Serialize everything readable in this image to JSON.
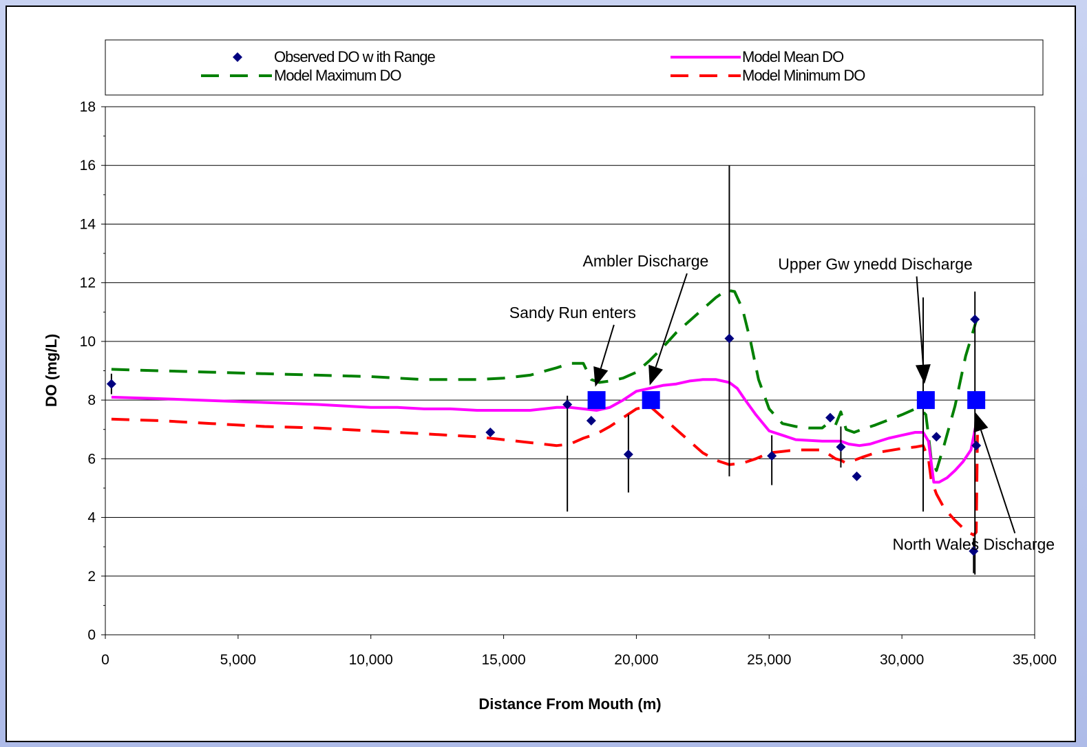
{
  "chart_data": {
    "type": "line",
    "xlabel": "Distance From Mouth (m)",
    "ylabel": "DO (mg/L)",
    "xlim": [
      0,
      35000
    ],
    "ylim": [
      0,
      18
    ],
    "x_ticks": [
      0,
      5000,
      10000,
      15000,
      20000,
      25000,
      30000,
      35000
    ],
    "x_tick_labels": [
      "0",
      "5,000",
      "10,000",
      "15,000",
      "20,000",
      "25,000",
      "30,000",
      "35,000"
    ],
    "y_ticks": [
      0,
      2,
      4,
      6,
      8,
      10,
      12,
      14,
      16,
      18
    ],
    "y_tick_labels": [
      "0",
      "2",
      "4",
      "6",
      "8",
      "10",
      "12",
      "14",
      "16",
      "18"
    ],
    "grid": "horizontal",
    "legend_position": "top",
    "legend": {
      "observed": "Observed DO w ith Range",
      "mean": "Model Mean DO",
      "max": "Model Maximum DO",
      "min": "Model Minimum DO"
    },
    "colors": {
      "observed": "#000080",
      "mean": "#ff00ff",
      "max": "#008000",
      "min": "#ff0000",
      "discharge": "#0000ff"
    },
    "observed": [
      {
        "x": 230,
        "y": 8.55,
        "lo": 8.2,
        "hi": 8.9
      },
      {
        "x": 14500,
        "y": 6.9
      },
      {
        "x": 17400,
        "y": 7.85,
        "lo": 4.2,
        "hi": 8.15
      },
      {
        "x": 18300,
        "y": 7.3
      },
      {
        "x": 19700,
        "y": 6.15,
        "lo": 4.85,
        "hi": 7.5
      },
      {
        "x": 23500,
        "y": 10.1,
        "lo": 5.4,
        "hi": 16.0
      },
      {
        "x": 25100,
        "y": 6.1,
        "lo": 5.1,
        "hi": 6.8
      },
      {
        "x": 27300,
        "y": 7.4
      },
      {
        "x": 27700,
        "y": 6.4,
        "lo": 5.7,
        "hi": 7.1
      },
      {
        "x": 28300,
        "y": 5.4
      },
      {
        "x": 30800,
        "y": 8.0,
        "lo": 4.2,
        "hi": 11.5
      },
      {
        "x": 31300,
        "y": 6.75
      },
      {
        "x": 32700,
        "y": 2.85,
        "lo": 2.1,
        "hi": 3.3
      },
      {
        "x": 32750,
        "y": 10.75,
        "lo": 2.05,
        "hi": 11.7
      },
      {
        "x": 32800,
        "y": 6.45
      }
    ],
    "discharges": [
      {
        "x": 18500,
        "y": 8.0
      },
      {
        "x": 20550,
        "y": 8.0
      },
      {
        "x": 30900,
        "y": 8.0
      },
      {
        "x": 32800,
        "y": 8.0
      }
    ],
    "series": [
      {
        "name": "Model Mean DO",
        "x": [
          230,
          2000,
          5000,
          8000,
          10000,
          11000,
          12000,
          13000,
          14000,
          15000,
          16000,
          17000,
          17500,
          18000,
          18500,
          19000,
          19500,
          20000,
          20500,
          21000,
          21500,
          22000,
          22500,
          23000,
          23500,
          23800,
          24100,
          24500,
          25000,
          25500,
          26000,
          27000,
          27700,
          28000,
          28400,
          28800,
          29500,
          30000,
          30500,
          30800,
          31000,
          31100,
          31200,
          31400,
          31700,
          32000,
          32300,
          32600,
          32800
        ],
        "y": [
          8.1,
          8.05,
          7.95,
          7.85,
          7.75,
          7.75,
          7.7,
          7.7,
          7.65,
          7.65,
          7.65,
          7.75,
          7.75,
          7.7,
          7.65,
          7.75,
          8.0,
          8.3,
          8.4,
          8.5,
          8.55,
          8.65,
          8.7,
          8.7,
          8.6,
          8.4,
          8.0,
          7.5,
          6.95,
          6.8,
          6.65,
          6.6,
          6.6,
          6.5,
          6.45,
          6.5,
          6.7,
          6.8,
          6.9,
          6.9,
          6.6,
          5.9,
          5.2,
          5.2,
          5.35,
          5.6,
          5.9,
          6.3,
          7.2
        ]
      },
      {
        "name": "Model Maximum DO",
        "x": [
          230,
          2000,
          4000,
          6000,
          8000,
          10000,
          11000,
          12000,
          13000,
          14000,
          15000,
          16000,
          17000,
          17500,
          18000,
          18300,
          18600,
          19000,
          19500,
          20000,
          20500,
          21000,
          21500,
          22000,
          22500,
          23000,
          23400,
          23700,
          24000,
          24300,
          24600,
          25000,
          25500,
          26000,
          26500,
          27000,
          27200,
          27500,
          27700,
          27900,
          28200,
          28500,
          29000,
          30000,
          30500,
          30800,
          30900,
          31000,
          31100,
          31300,
          31600,
          32000,
          32400,
          32800
        ],
        "y": [
          9.05,
          9.0,
          8.95,
          8.9,
          8.85,
          8.8,
          8.75,
          8.7,
          8.7,
          8.7,
          8.75,
          8.85,
          9.1,
          9.25,
          9.25,
          8.7,
          8.6,
          8.65,
          8.75,
          8.95,
          9.35,
          9.8,
          10.3,
          10.7,
          11.1,
          11.5,
          11.75,
          11.7,
          11.1,
          10.0,
          8.7,
          7.7,
          7.2,
          7.1,
          7.05,
          7.05,
          7.2,
          7.15,
          7.6,
          7.0,
          6.9,
          7.0,
          7.15,
          7.5,
          7.7,
          7.6,
          7.5,
          6.8,
          6.0,
          5.6,
          6.5,
          7.8,
          9.5,
          10.7
        ]
      },
      {
        "name": "Model Minimum DO",
        "x": [
          230,
          2000,
          4000,
          6000,
          8000,
          10000,
          12000,
          14000,
          15000,
          16000,
          17000,
          17500,
          18000,
          18500,
          19000,
          19500,
          20000,
          20500,
          21000,
          21500,
          22000,
          22500,
          23000,
          23500,
          24000,
          24500,
          25000,
          25500,
          26000,
          27000,
          27500,
          27700,
          27900,
          28200,
          28500,
          29000,
          30000,
          30500,
          30800,
          31000,
          31100,
          31300,
          31600,
          32000,
          32400,
          32700,
          32800,
          32850
        ],
        "y": [
          7.35,
          7.3,
          7.2,
          7.1,
          7.05,
          6.95,
          6.85,
          6.75,
          6.65,
          6.55,
          6.45,
          6.5,
          6.7,
          6.85,
          7.1,
          7.4,
          7.7,
          7.8,
          7.4,
          7.0,
          6.6,
          6.2,
          5.95,
          5.8,
          5.85,
          6.0,
          6.2,
          6.25,
          6.3,
          6.3,
          6.0,
          5.95,
          5.85,
          5.95,
          6.05,
          6.2,
          6.35,
          6.4,
          6.45,
          6.0,
          5.3,
          4.8,
          4.3,
          3.9,
          3.55,
          3.4,
          3.5,
          7.2
        ]
      }
    ],
    "annotations": [
      {
        "text": "Sandy Run enters",
        "tx": 17600,
        "ty": 10.8,
        "ax": 18450,
        "ay": 8.45
      },
      {
        "text": "Ambler Discharge",
        "tx": 20350,
        "ty": 12.55,
        "ax": 20500,
        "ay": 8.5
      },
      {
        "text": "Upper Gw ynedd Discharge",
        "tx": 29000,
        "ty": 12.45,
        "ax": 30850,
        "ay": 8.55
      },
      {
        "text": "North Wales Discharge",
        "tx": 32700,
        "ty": 2.9,
        "ax": 32750,
        "ay": 7.6
      }
    ]
  }
}
